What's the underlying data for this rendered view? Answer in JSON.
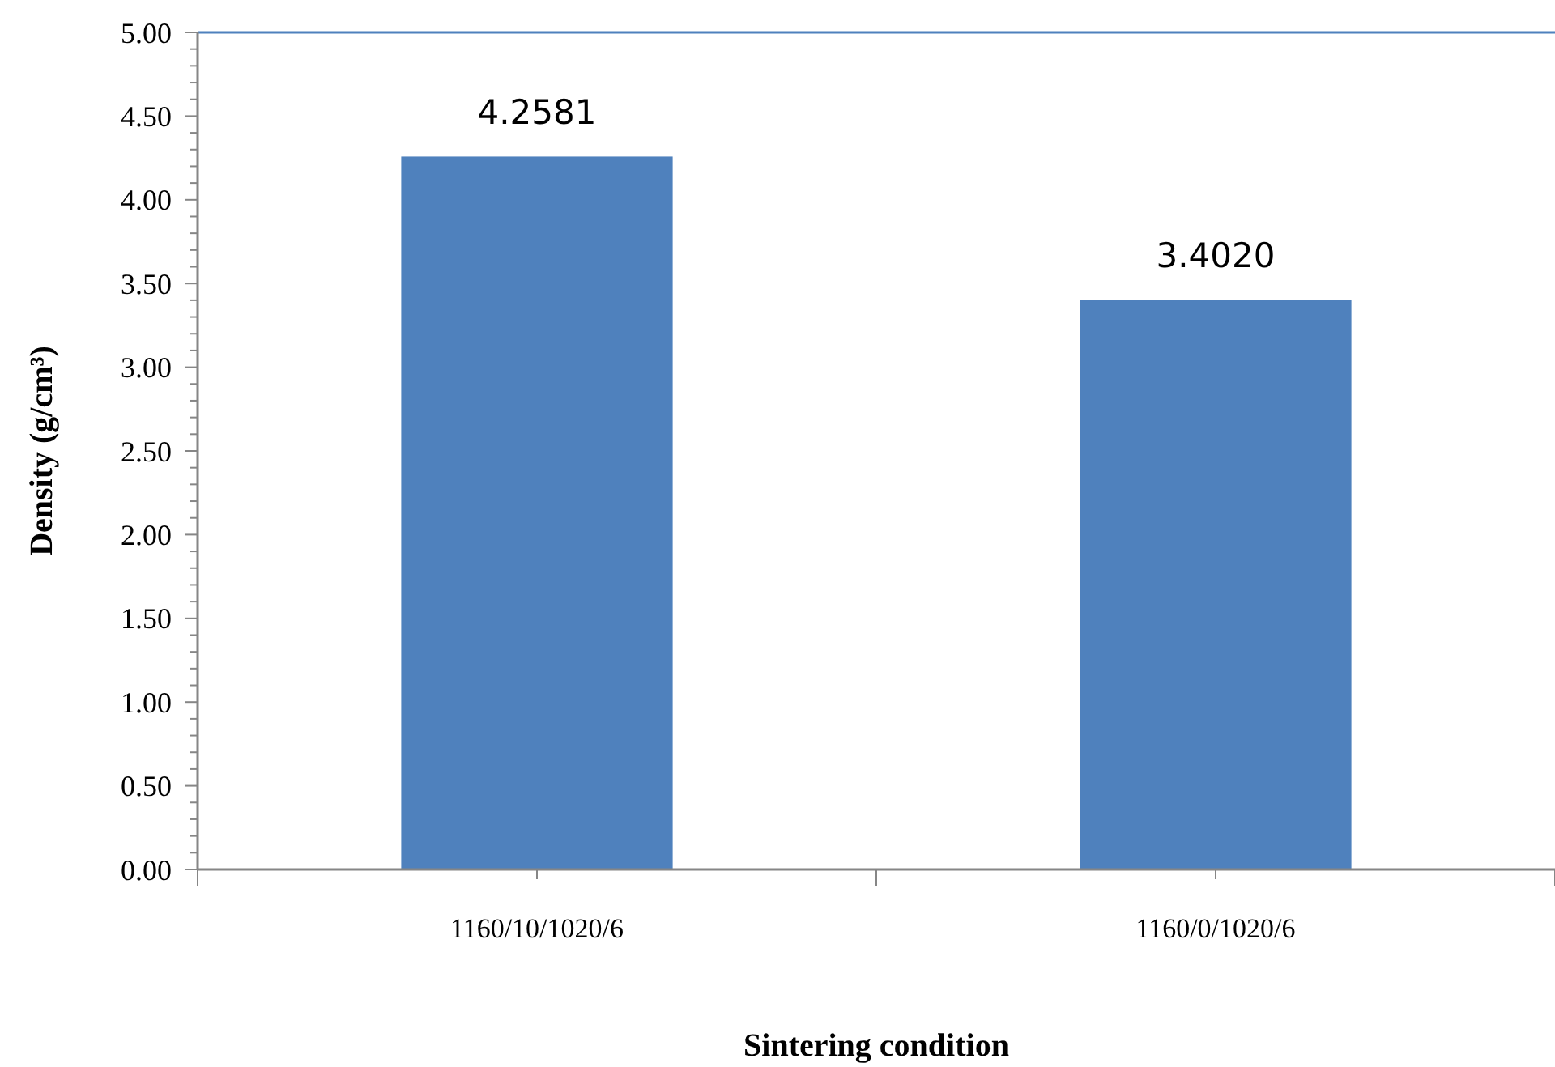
{
  "chart_data": {
    "type": "bar",
    "xlabel": "Sintering condition",
    "ylabel": "Density (g/cm³)",
    "categories": [
      "1160/10/1020/6",
      "1160/0/1020/6"
    ],
    "values": [
      4.2581,
      3.402
    ],
    "value_labels": [
      "4.2581",
      "3.4020"
    ],
    "color": "#4f81bd",
    "ylim": [
      0,
      5
    ],
    "yticks": [
      {
        "value": 0,
        "label": "0.00"
      },
      {
        "value": 0.1,
        "label": null
      },
      {
        "value": 0.2,
        "label": null
      },
      {
        "value": 0.3,
        "label": null
      },
      {
        "value": 0.4,
        "label": null
      },
      {
        "value": 0.5,
        "label": "0.50"
      },
      {
        "value": 0.6,
        "label": null
      },
      {
        "value": 0.7,
        "label": null
      },
      {
        "value": 0.8,
        "label": null
      },
      {
        "value": 0.9,
        "label": null
      },
      {
        "value": 1,
        "label": "1.00"
      },
      {
        "value": 1.1,
        "label": null
      },
      {
        "value": 1.2,
        "label": null
      },
      {
        "value": 1.3,
        "label": null
      },
      {
        "value": 1.4,
        "label": null
      },
      {
        "value": 1.5,
        "label": "1.50"
      },
      {
        "value": 1.6,
        "label": null
      },
      {
        "value": 1.7,
        "label": null
      },
      {
        "value": 1.8,
        "label": null
      },
      {
        "value": 1.9,
        "label": null
      },
      {
        "value": 2,
        "label": "2.00"
      },
      {
        "value": 2.1,
        "label": null
      },
      {
        "value": 2.2,
        "label": null
      },
      {
        "value": 2.3,
        "label": null
      },
      {
        "value": 2.4,
        "label": null
      },
      {
        "value": 2.5,
        "label": "2.50"
      },
      {
        "value": 2.6,
        "label": null
      },
      {
        "value": 2.7,
        "label": null
      },
      {
        "value": 2.8,
        "label": null
      },
      {
        "value": 2.9,
        "label": null
      },
      {
        "value": 3,
        "label": "3.00"
      },
      {
        "value": 3.1,
        "label": null
      },
      {
        "value": 3.2,
        "label": null
      },
      {
        "value": 3.3,
        "label": null
      },
      {
        "value": 3.4,
        "label": null
      },
      {
        "value": 3.5,
        "label": "3.50"
      },
      {
        "value": 3.6,
        "label": null
      },
      {
        "value": 3.7,
        "label": null
      },
      {
        "value": 3.8,
        "label": null
      },
      {
        "value": 3.9,
        "label": null
      },
      {
        "value": 4,
        "label": "4.00"
      },
      {
        "value": 4.1,
        "label": null
      },
      {
        "value": 4.2,
        "label": null
      },
      {
        "value": 4.3,
        "label": null
      },
      {
        "value": 4.4,
        "label": null
      },
      {
        "value": 4.5,
        "label": "4.50"
      },
      {
        "value": 4.6,
        "label": null
      },
      {
        "value": 4.7,
        "label": null
      },
      {
        "value": 4.8,
        "label": null
      },
      {
        "value": 4.9,
        "label": null
      },
      {
        "value": 5,
        "label": "5.00"
      }
    ]
  }
}
